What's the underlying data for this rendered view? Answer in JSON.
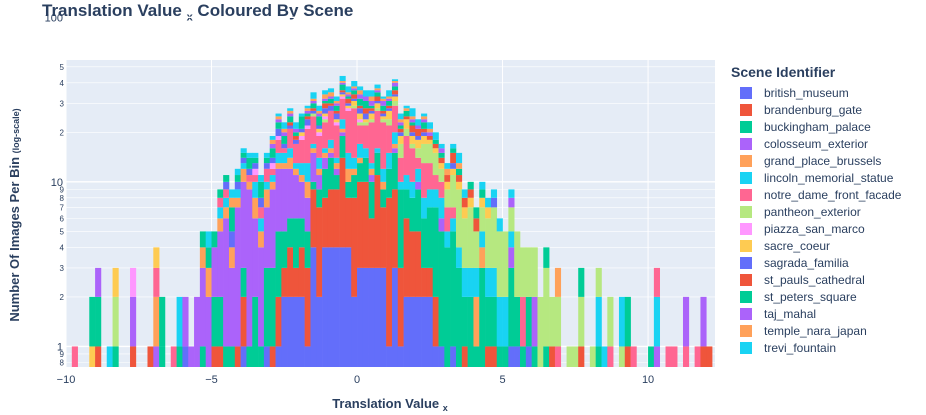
{
  "chart_data": {
    "type": "bar",
    "stacked": true,
    "title": "Translation Value",
    "title_subscript": "x",
    "title_suffix": "Coloured By Scene",
    "xlabel": "Translation Value",
    "xlabel_subscript": "x",
    "ylabel": "Number Of Images Per Bin",
    "ylabel_note": "(log-scale)",
    "y_scale": "log",
    "xlim": [
      -10,
      12.3
    ],
    "ylim": [
      0.75,
      55
    ],
    "x_ticks": [
      -10,
      -5,
      0,
      5,
      10
    ],
    "x_tick_labels": [
      "−10",
      "−5",
      "0",
      "5",
      "10"
    ],
    "y_major_ticks": [
      {
        "value": 1,
        "label": "1"
      },
      {
        "value": 10,
        "label": "10"
      },
      {
        "value": 100,
        "label": "100"
      }
    ],
    "y_minor_ticks": [
      {
        "value": 0.8,
        "label": "8"
      },
      {
        "value": 0.9,
        "label": "9"
      },
      {
        "value": 2,
        "label": "2"
      },
      {
        "value": 3,
        "label": "3"
      },
      {
        "value": 4,
        "label": "4"
      },
      {
        "value": 5,
        "label": "5"
      },
      {
        "value": 6,
        "label": "6"
      },
      {
        "value": 7,
        "label": "7"
      },
      {
        "value": 8,
        "label": "8"
      },
      {
        "value": 9,
        "label": "9"
      },
      {
        "value": 20,
        "label": "2"
      },
      {
        "value": 30,
        "label": "3"
      },
      {
        "value": 40,
        "label": "4"
      },
      {
        "value": 50,
        "label": "5"
      },
      {
        "value": 60,
        "label": "6"
      },
      {
        "value": 70,
        "label": "7"
      },
      {
        "value": 80,
        "label": "8"
      },
      {
        "value": 90,
        "label": "9"
      },
      {
        "value": 200,
        "label": "2"
      },
      {
        "value": 300,
        "label": "3"
      },
      {
        "value": 400,
        "label": "4"
      },
      {
        "value": 500,
        "label": "5"
      }
    ],
    "grid": true,
    "legend_title": "Scene Identifier",
    "legend_position": "right",
    "series": [
      {
        "name": "british_museum",
        "color": "#636efa",
        "center": 0,
        "spread": 1.9,
        "peak": 3.2
      },
      {
        "name": "brandenburg_gate",
        "color": "#ef553b",
        "center": 0,
        "spread": 1.3,
        "peak": 7
      },
      {
        "name": "buckingham_palace",
        "color": "#00cc96",
        "center": 1,
        "spread": 2.8,
        "peak": 4
      },
      {
        "name": "colosseum_exterior",
        "color": "#ab63fa",
        "center": -3,
        "spread": 1.4,
        "peak": 6
      },
      {
        "name": "grand_place_brussels",
        "color": "#ffa15a",
        "center": -2,
        "spread": 2.2,
        "peak": 1.6
      },
      {
        "name": "lincoln_memorial_statue",
        "color": "#19d3f3",
        "center": 0,
        "spread": 3.2,
        "peak": 2.2
      },
      {
        "name": "notre_dame_front_facade",
        "color": "#ff6692",
        "center": 0,
        "spread": 1.6,
        "peak": 9
      },
      {
        "name": "pantheon_exterior",
        "color": "#b6e880",
        "center": 3.5,
        "spread": 2.2,
        "peak": 3
      },
      {
        "name": "piazza_san_marco",
        "color": "#ff97ff",
        "center": -2,
        "spread": 2,
        "peak": 0.8
      },
      {
        "name": "sacre_coeur",
        "color": "#fecb52",
        "center": 1,
        "spread": 2,
        "peak": 1.8
      },
      {
        "name": "sagrada_familia",
        "color": "#636efa",
        "center": -1,
        "spread": 2.4,
        "peak": 1.5
      },
      {
        "name": "st_pauls_cathedral",
        "color": "#ef553b",
        "center": 1,
        "spread": 2.2,
        "peak": 2
      },
      {
        "name": "st_peters_square",
        "color": "#00cc96",
        "center": -1,
        "spread": 2.6,
        "peak": 2.5
      },
      {
        "name": "taj_mahal",
        "color": "#ab63fa",
        "center": 0,
        "spread": 2,
        "peak": 1.5
      },
      {
        "name": "temple_nara_japan",
        "color": "#ffa15a",
        "center": 0,
        "spread": 2.5,
        "peak": 1.2
      },
      {
        "name": "trevi_fountain",
        "color": "#19d3f3",
        "center": 0,
        "spread": 2.8,
        "peak": 2.5
      }
    ]
  }
}
